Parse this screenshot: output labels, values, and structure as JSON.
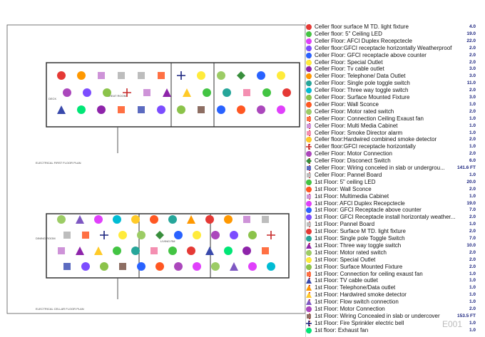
{
  "drawing": {
    "labels": [
      "DECK",
      "GREAT ROOM",
      "ELECTRICAL FIRST FLOOR PLAN",
      "DINING ROOM",
      "LIVING RM",
      "ELECTRICAL CELLAR FLOOR PLAN",
      "E001"
    ]
  },
  "takeoff": {
    "items": [
      {
        "label": "Celler floor surface M TD. light fixture",
        "value": "4.0",
        "shape": "circle",
        "color": "#e53935"
      },
      {
        "label": "Celler floor: 5\" Ceiling LED",
        "value": "19.0",
        "shape": "circle",
        "color": "#43c443"
      },
      {
        "label": "Celler Floor: AFCI Duplex Recepctecle",
        "value": "22.0",
        "shape": "circle",
        "color": "#e040fb"
      },
      {
        "label": "Celler floor:GFCI receptacle horizontally Weatherproof",
        "value": "2.0",
        "shape": "circle",
        "color": "#7c4dff"
      },
      {
        "label": "Celler Floor: GFCI receptacle above counter",
        "value": "2.0",
        "shape": "circle",
        "color": "#2962ff"
      },
      {
        "label": "Celler Floor: Special Outlet",
        "value": "2.0",
        "shape": "circle",
        "color": "#ffeb3b"
      },
      {
        "label": "Celler Floor: Tv cable outlet",
        "value": "3.0",
        "shape": "circle",
        "color": "#8e24aa"
      },
      {
        "label": "Celler Floor: Telephone/ Data Outlet",
        "value": "3.0",
        "shape": "circle",
        "color": "#ff9800"
      },
      {
        "label": "Celler Floor: Single pole toggle switch",
        "value": "11.0",
        "shape": "circle",
        "color": "#26a69a"
      },
      {
        "label": "Celler Floor: Three way toggle switch",
        "value": "2.0",
        "shape": "circle",
        "color": "#00bcd4"
      },
      {
        "label": "Celler Floor: Surface Mounted Fixture",
        "value": "3.0",
        "shape": "circle",
        "color": "#8bc34a"
      },
      {
        "label": "Celler Floor: Wall Sconce",
        "value": "1.0",
        "shape": "circle",
        "color": "#ff5722"
      },
      {
        "label": "Celler Floor: Motor rated switch",
        "value": "2.0",
        "shape": "circle",
        "color": "#9ccc65"
      },
      {
        "label": "Celler Floor: Connection Ceiling Exaust fan",
        "value": "1.0",
        "shape": "square",
        "color": "#ff7043"
      },
      {
        "label": "Celler Floor: Multi Media Cabinet",
        "value": "1.0",
        "shape": "square",
        "color": "#ce93d8"
      },
      {
        "label": "Celler Floor: Smoke Director alarm",
        "value": "1.0",
        "shape": "square",
        "color": "#f48fb1"
      },
      {
        "label": "Celler floor:Hardwired combined smoke detector",
        "value": "2.0",
        "shape": "circle",
        "color": "#ffca28"
      },
      {
        "label": "Celler floor:GFCI receptacle horizontally",
        "value": "1.0",
        "shape": "plus",
        "color": "#c62828"
      },
      {
        "label": "Celler Floor: Motor Connection",
        "value": "2.0",
        "shape": "circle",
        "color": "#ab47bc"
      },
      {
        "label": "Celler Floor: Disconect Switch",
        "value": "6.0",
        "shape": "diamond",
        "color": "#388e3c"
      },
      {
        "label": "Celler Floor: Wiring conceled in slab or undergrou...",
        "value": "141.6 FT",
        "shape": "square",
        "color": "#5c6bc0"
      },
      {
        "label": "Celler Floor: Pannel Board",
        "value": "1.0",
        "shape": "square",
        "color": "#bdbdbd"
      },
      {
        "label": "1st Floor: 5\" ceiling LED",
        "value": "20.0",
        "shape": "circle",
        "color": "#43c443"
      },
      {
        "label": "1st Floor: Wall Sconce",
        "value": "2.0",
        "shape": "circle",
        "color": "#ff5722"
      },
      {
        "label": "1st Floor: Multimedia Cabinet",
        "value": "1.0",
        "shape": "square",
        "color": "#ce93d8"
      },
      {
        "label": "1st Floor: AFCI Duplex Recepctecle",
        "value": "19.0",
        "shape": "circle",
        "color": "#e040fb"
      },
      {
        "label": "1st Floor: GFCI Receptacle above counter",
        "value": "7.0",
        "shape": "circle",
        "color": "#2962ff"
      },
      {
        "label": "1st Floor: GFCI Receptacle install horizontaly weather...",
        "value": "2.0",
        "shape": "circle",
        "color": "#7c4dff"
      },
      {
        "label": "1st Floor: Pannel Board",
        "value": "1.0",
        "shape": "square",
        "color": "#bdbdbd"
      },
      {
        "label": "1st Floor: Surface M TD. light fixture",
        "value": "2.0",
        "shape": "circle",
        "color": "#e53935"
      },
      {
        "label": "1st Floor: Single pole Toggle Switch",
        "value": "7.0",
        "shape": "circle",
        "color": "#26a69a"
      },
      {
        "label": "1st Floor: Three way toggle switch",
        "value": "10.0",
        "shape": "triangle",
        "color": "#8e24aa"
      },
      {
        "label": "1st Floor: Motor rated switch",
        "value": "2.0",
        "shape": "circle",
        "color": "#9ccc65"
      },
      {
        "label": "1st Floor: Special Outlet",
        "value": "2.0",
        "shape": "circle",
        "color": "#ffeb3b"
      },
      {
        "label": "1st Floor: Surface Mounted Fixture",
        "value": "2.0",
        "shape": "circle",
        "color": "#8bc34a"
      },
      {
        "label": "1st Floor: Connection for ceiling exaust fan",
        "value": "1.0",
        "shape": "square",
        "color": "#ff7043"
      },
      {
        "label": "1st Floor: TV cable outlet",
        "value": "1.0",
        "shape": "triangle",
        "color": "#3949ab"
      },
      {
        "label": "1st Floor: Telephone/Data outlet",
        "value": "1.0",
        "shape": "triangle",
        "color": "#ff9800"
      },
      {
        "label": "1st Floor: Hardwired smoke detector",
        "value": "1.0",
        "shape": "triangle",
        "color": "#ffca28"
      },
      {
        "label": "1st Floor: Flow switch connection",
        "value": "1.0",
        "shape": "triangle",
        "color": "#7e57c2"
      },
      {
        "label": "1st Floor: Motor Connection",
        "value": "2.0",
        "shape": "circle",
        "color": "#ab47bc"
      },
      {
        "label": "1st Floor: Wiring Concealed in slab or undercover",
        "value": "153.5 FT",
        "shape": "square",
        "color": "#8d6e63"
      },
      {
        "label": "1st Floor: Fire Sprinkler electric bell",
        "value": "1.0",
        "shape": "plus",
        "color": "#1a237e"
      },
      {
        "label": "1st floor: Exhaust fan",
        "value": "1.0",
        "shape": "circle",
        "color": "#00e676"
      }
    ]
  }
}
